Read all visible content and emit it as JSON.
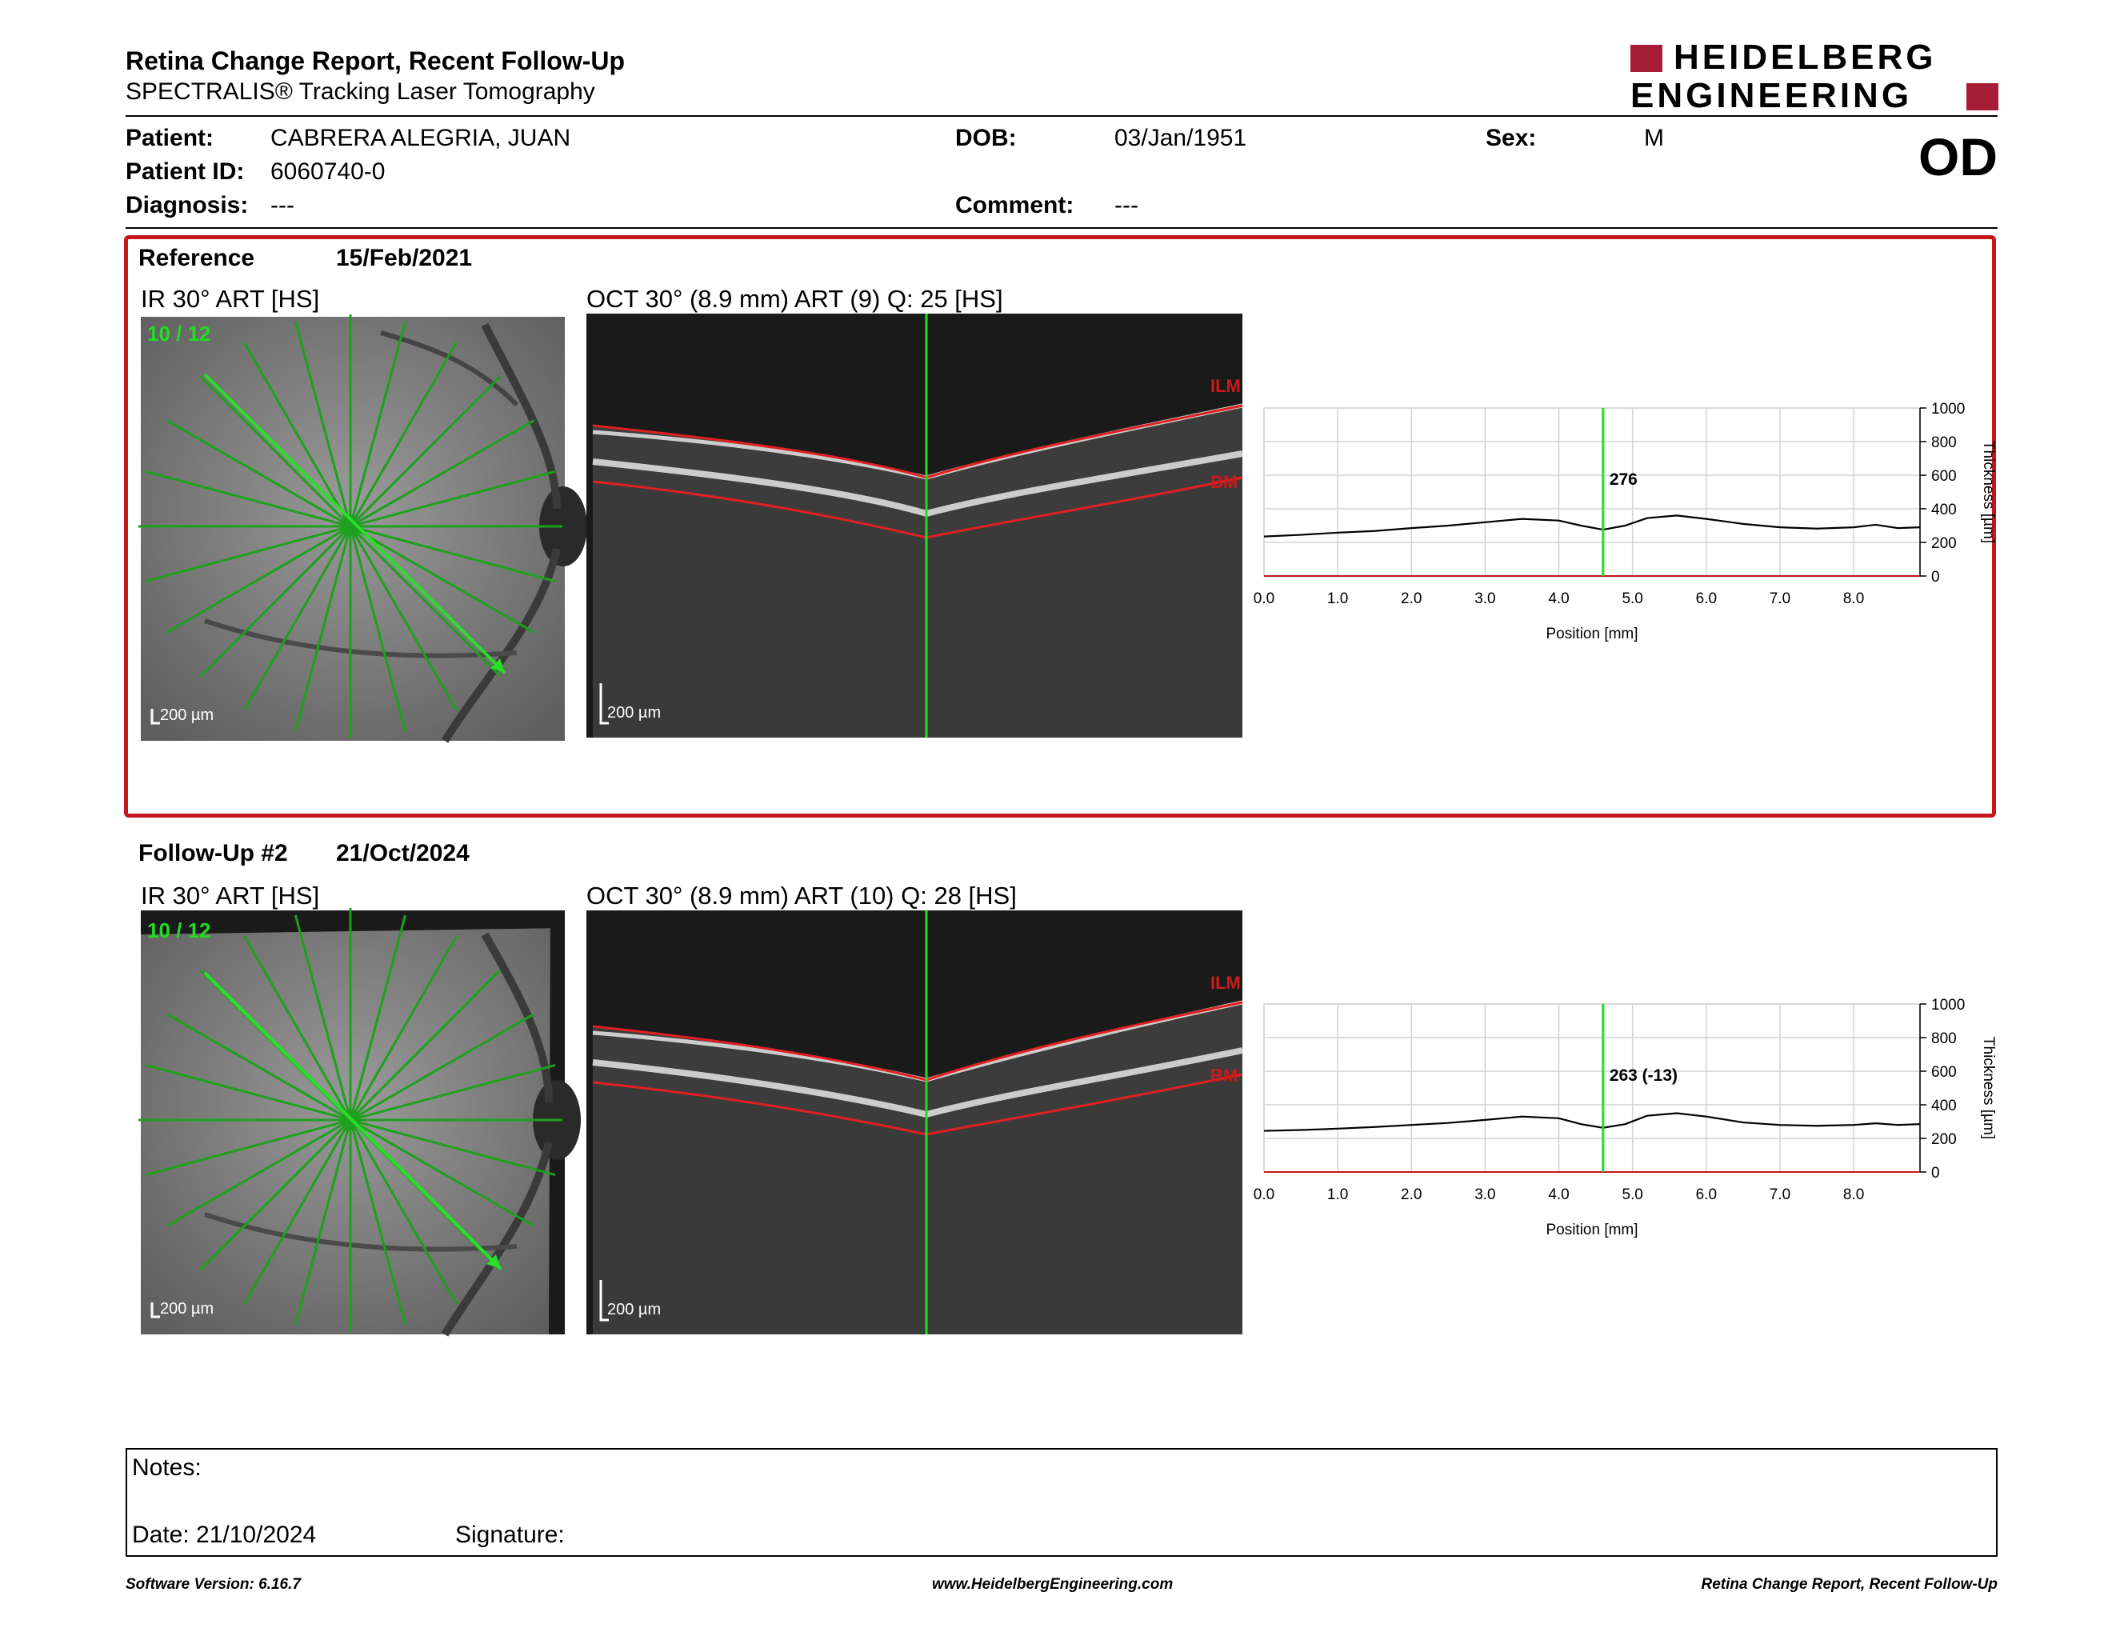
{
  "header": {
    "title": "Retina Change Report, Recent Follow-Up",
    "subtitle": "SPECTRALIS® Tracking Laser Tomography",
    "logo_line1": "HEIDELBERG",
    "logo_line2": "ENGINEERING",
    "eye": "OD"
  },
  "patient": {
    "patient_label": "Patient:",
    "patient_value": "CABRERA ALEGRIA, JUAN",
    "id_label": "Patient ID:",
    "id_value": "6060740-0",
    "diagnosis_label": "Diagnosis:",
    "diagnosis_value": "---",
    "dob_label": "DOB:",
    "dob_value": "03/Jan/1951",
    "comment_label": "Comment:",
    "comment_value": "---",
    "sex_label": "Sex:",
    "sex_value": "M"
  },
  "reference": {
    "label": "Reference",
    "date": "15/Feb/2021",
    "ir_caption": "IR 30° ART [HS]",
    "ir_overlay": "10 / 12",
    "ir_scale": "200 µm",
    "oct_caption": "OCT 30° (8.9 mm) ART (9) Q: 25 [HS]",
    "oct_scale": "200 µm",
    "ilm": "ILM",
    "bm": "BM"
  },
  "followup": {
    "label": "Follow-Up #2",
    "date": "21/Oct/2024",
    "ir_caption": "IR 30° ART [HS]",
    "ir_overlay": "10 / 12",
    "ir_scale": "200 µm",
    "oct_caption": "OCT 30° (8.9 mm) ART (10) Q: 28 [HS]",
    "oct_scale": "200 µm",
    "ilm": "ILM",
    "bm": "BM"
  },
  "chart_data": [
    {
      "type": "line",
      "xlabel": "Position [mm]",
      "ylabel": "Thickness [µm]",
      "xlim": [
        0,
        8.9
      ],
      "ylim": [
        0,
        1000
      ],
      "x_ticks": [
        "0.0",
        "1.0",
        "2.0",
        "3.0",
        "4.0",
        "5.0",
        "6.0",
        "7.0",
        "8.0"
      ],
      "y_ticks": [
        "0",
        "200",
        "400",
        "600",
        "800",
        "1000"
      ],
      "marker_x": 4.6,
      "marker_label": "276",
      "series": [
        {
          "x": [
            0,
            0.5,
            1.0,
            1.5,
            2.0,
            2.5,
            3.0,
            3.5,
            4.0,
            4.3,
            4.6,
            4.9,
            5.2,
            5.6,
            6.0,
            6.5,
            7.0,
            7.5,
            8.0,
            8.3,
            8.6,
            8.9
          ],
          "values": [
            235,
            245,
            258,
            268,
            285,
            300,
            320,
            340,
            330,
            300,
            276,
            300,
            345,
            360,
            340,
            310,
            290,
            282,
            290,
            305,
            285,
            290
          ]
        }
      ],
      "grid": true
    },
    {
      "type": "line",
      "xlabel": "Position [mm]",
      "ylabel": "Thickness [µm]",
      "xlim": [
        0,
        8.9
      ],
      "ylim": [
        0,
        1000
      ],
      "x_ticks": [
        "0.0",
        "1.0",
        "2.0",
        "3.0",
        "4.0",
        "5.0",
        "6.0",
        "7.0",
        "8.0"
      ],
      "y_ticks": [
        "0",
        "200",
        "400",
        "600",
        "800",
        "1000"
      ],
      "marker_x": 4.6,
      "marker_label": "263 (-13)",
      "series": [
        {
          "x": [
            0,
            0.5,
            1.0,
            1.5,
            2.0,
            2.5,
            3.0,
            3.5,
            4.0,
            4.3,
            4.6,
            4.9,
            5.2,
            5.6,
            6.0,
            6.5,
            7.0,
            7.5,
            8.0,
            8.3,
            8.6,
            8.9
          ],
          "values": [
            245,
            250,
            258,
            268,
            280,
            292,
            310,
            330,
            320,
            285,
            263,
            285,
            335,
            350,
            330,
            295,
            280,
            275,
            280,
            290,
            280,
            285
          ]
        }
      ],
      "grid": true
    }
  ],
  "notes": {
    "notes_label": "Notes:",
    "date_label": "Date: 21/10/2024",
    "signature_label": "Signature:"
  },
  "footer": {
    "version": "Software Version: 6.16.7",
    "website": "www.HeidelbergEngineering.com",
    "report": "Retina Change Report, Recent Follow-Up"
  }
}
